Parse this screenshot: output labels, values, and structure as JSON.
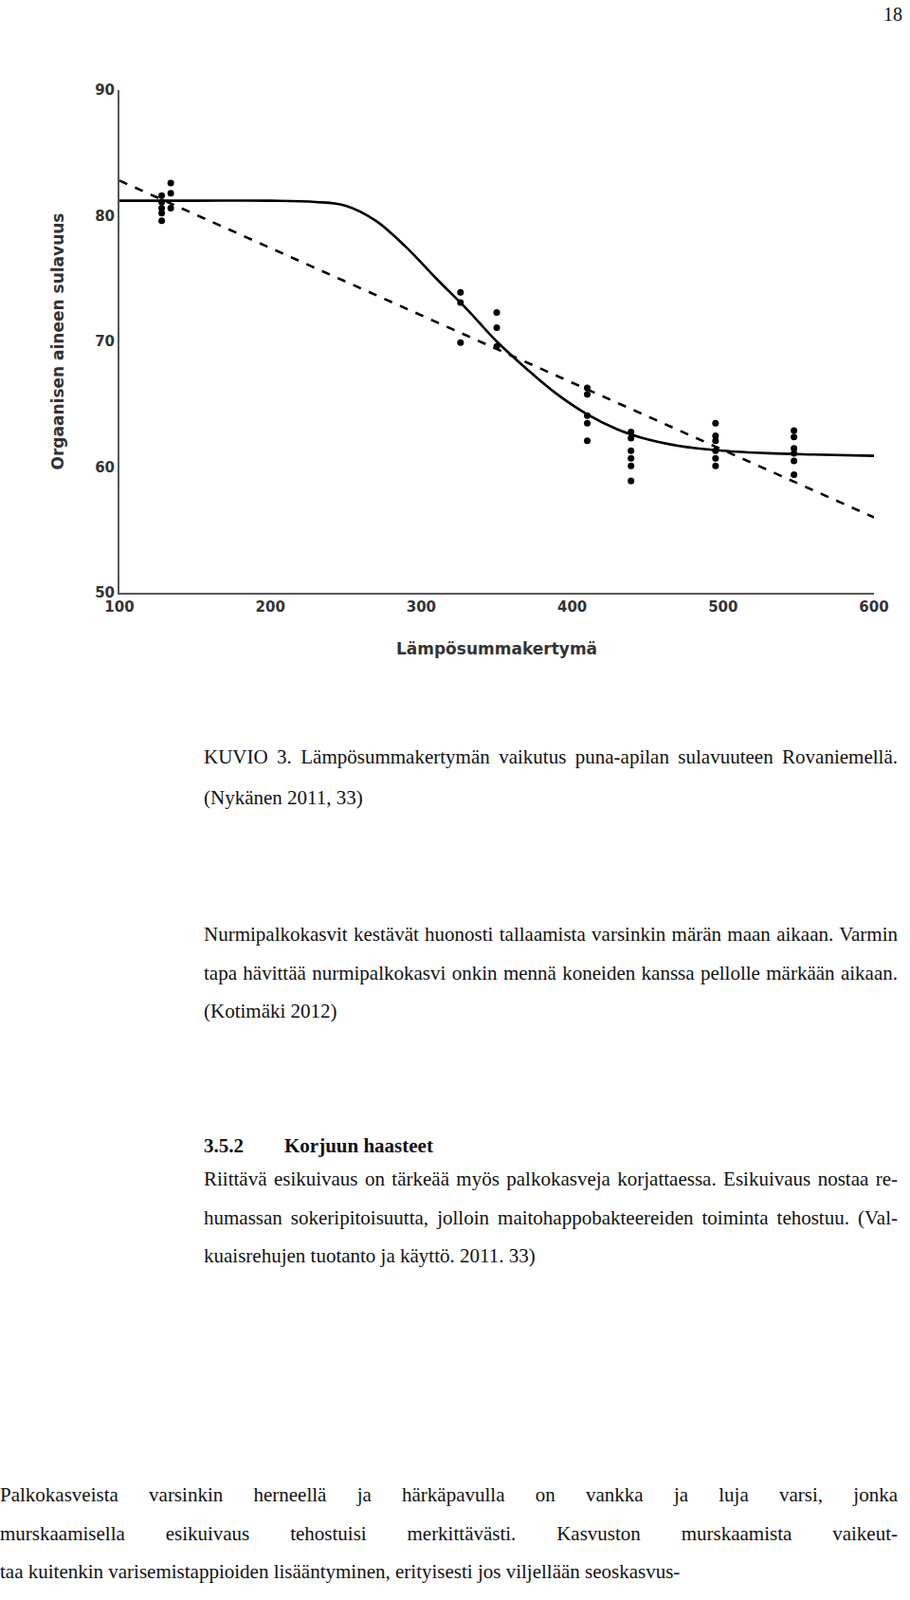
{
  "chart_data": {
    "type": "line",
    "xlabel": "Lämpösummakertymä",
    "ylabel": "Orgaanisen aineen sulavuus",
    "xlim": [
      100,
      600
    ],
    "xticks": [
      100,
      200,
      300,
      400,
      500,
      600
    ],
    "ylim": [
      50,
      90
    ],
    "yticks": [
      50,
      60,
      70,
      80,
      90
    ],
    "grid": false,
    "series": [
      {
        "type": "scatter",
        "marker": "circle",
        "color": "#000000",
        "x": [
          128,
          128,
          128,
          128,
          128,
          134,
          134,
          134,
          326,
          326,
          326,
          350,
          350,
          350,
          410,
          410,
          410,
          410,
          410,
          439,
          439,
          439,
          439,
          439,
          439,
          495,
          495,
          495,
          495,
          495,
          495,
          547,
          547,
          547,
          547,
          547,
          547
        ],
        "values": [
          81.6,
          81.1,
          80.6,
          80.2,
          79.6,
          82.6,
          81.8,
          80.6,
          73.9,
          73.1,
          69.9,
          72.3,
          71.1,
          69.6,
          66.3,
          65.8,
          64.1,
          63.5,
          62.1,
          62.8,
          62.3,
          61.3,
          60.7,
          60.1,
          58.9,
          63.5,
          62.5,
          62.1,
          61.3,
          60.7,
          60.1,
          62.9,
          62.4,
          61.5,
          61.1,
          60.5,
          59.4
        ]
      },
      {
        "type": "line",
        "line_style": "solid",
        "color": "#000000",
        "x": [
          100,
          150,
          200,
          230,
          250,
          270,
          290,
          310,
          330,
          350,
          370,
          390,
          410,
          430,
          450,
          470,
          500,
          530,
          560,
          600
        ],
        "values": [
          81.2,
          81.2,
          81.2,
          81.1,
          80.8,
          79.6,
          77.5,
          75.0,
          72.6,
          70.0,
          67.8,
          65.8,
          64.2,
          63.0,
          62.2,
          61.7,
          61.3,
          61.1,
          61.0,
          60.9
        ]
      },
      {
        "type": "line",
        "line_style": "dashed",
        "color": "#000000",
        "x": [
          100,
          600
        ],
        "values": [
          82.8,
          56.0
        ]
      }
    ]
  },
  "document": {
    "page_number": "18",
    "caption": [
      "KUVIO 3. Lämpösummakertymän vaikutus puna-apilan sulavuuteen Rovaniemellä.",
      "(Nykänen 2011, 33)"
    ],
    "heading": {
      "number": "3.5.2",
      "text": "Korjuun haasteet"
    },
    "paragraphs": [
      [
        "Nurmipalkokasvit kestävät huonosti tallaamista varsinkin märän maan aikaan. Varmin",
        "tapa hävittää nurmipalkokasvi onkin mennä koneiden kanssa pellolle märkään aikaan.",
        "(Kotimäki 2012)"
      ],
      [
        "Riittävä esikuivaus on tärkeää myös palkokasveja korjattaessa. Esikuivaus nostaa re-",
        "humassan sokeripitoisuutta, jolloin maitohappobakteereiden toiminta tehostuu. (Val-",
        "kuaisrehujen tuotanto ja käyttö. 2011. 33)"
      ],
      [
        "Palkokasveista varsinkin herneellä ja härkäpavulla on vankka ja luja varsi, jonka",
        "murskaamisella esikuivaus tehostuisi merkittävästi. Kasvuston murskaamista vaikeut-",
        "taa kuitenkin varisemistappioiden lisääntyminen, erityisesti jos viljellään seoskasvus-"
      ]
    ]
  }
}
